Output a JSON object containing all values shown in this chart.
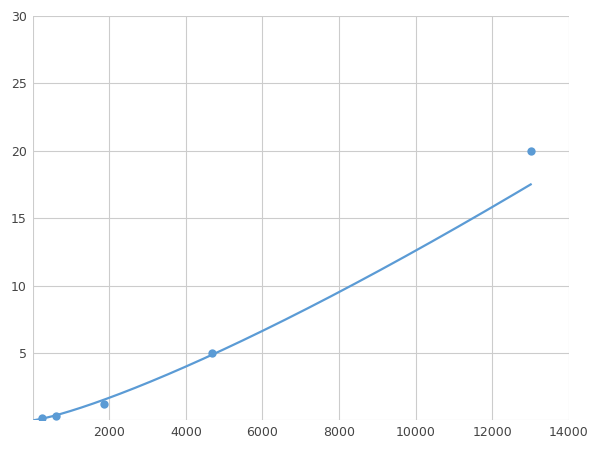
{
  "x_points": [
    250,
    625,
    1875,
    4688,
    13000
  ],
  "y_points": [
    0.15,
    0.35,
    1.2,
    5.0,
    20.0
  ],
  "line_color": "#5B9BD5",
  "marker_color": "#5B9BD5",
  "marker_size": 6,
  "line_width": 1.6,
  "xlim": [
    0,
    14000
  ],
  "ylim": [
    0,
    30
  ],
  "xticks": [
    0,
    2000,
    4000,
    6000,
    8000,
    10000,
    12000,
    14000
  ],
  "yticks": [
    0,
    5,
    10,
    15,
    20,
    25,
    30
  ],
  "grid_color": "#CCCCCC",
  "background_color": "#FFFFFF",
  "figsize": [
    6.0,
    4.5
  ],
  "dpi": 100
}
